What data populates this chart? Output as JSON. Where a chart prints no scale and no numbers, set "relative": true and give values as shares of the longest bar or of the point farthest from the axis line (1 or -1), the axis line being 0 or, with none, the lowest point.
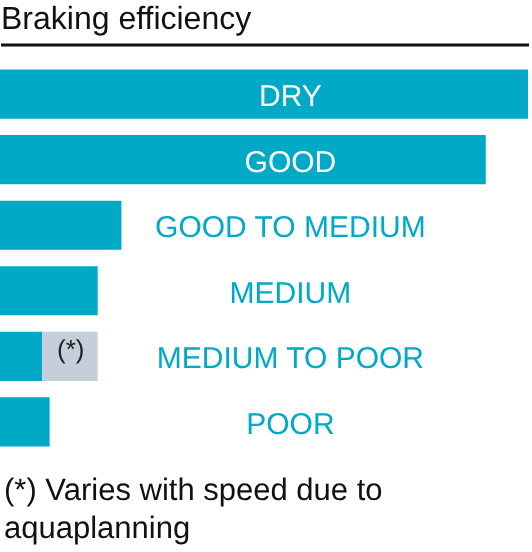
{
  "chart_data": {
    "type": "bar",
    "orientation": "horizontal",
    "stacked": true,
    "relative": true,
    "xlabel": "Braking efficiency",
    "categories": [
      "DRY",
      "GOOD",
      "GOOD TO MEDIUM",
      "MEDIUM",
      "MEDIUM TO POOR",
      "POOR"
    ],
    "series": [
      {
        "color": "#00a9c6",
        "values": [
          1,
          0.92,
          0.23,
          0.185,
          0.08,
          0.094
        ]
      },
      {
        "color": "#c5cfd9",
        "values": [
          null,
          null,
          null,
          null,
          0.105,
          null
        ]
      }
    ],
    "annotations": [
      {
        "text": "(*)",
        "x": 0.134,
        "y": "MEDIUM TO POOR"
      },
      "(*) Varies with speed due to aquaplanning"
    ]
  }
}
